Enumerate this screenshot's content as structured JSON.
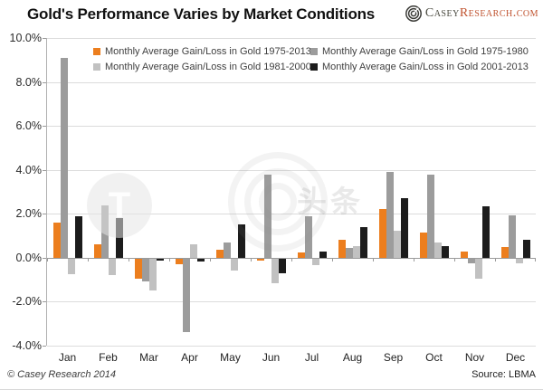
{
  "header": {
    "title": "Gold's Performance Varies by Market Conditions",
    "logo": {
      "brand_left": "Casey",
      "brand_right": "Research.com"
    }
  },
  "chart_data": {
    "type": "bar",
    "title": "Gold's Performance Varies by Market Conditions",
    "categories": [
      "Jan",
      "Feb",
      "Mar",
      "Apr",
      "May",
      "Jun",
      "Jul",
      "Aug",
      "Sep",
      "Oct",
      "Nov",
      "Dec"
    ],
    "series": [
      {
        "name": "Monthly Average Gain/Loss in Gold 1975-2013",
        "short": "1975-2013",
        "color": "#EC7E1E",
        "values": [
          1.6,
          0.6,
          -0.9,
          -0.25,
          0.35,
          -0.1,
          0.25,
          0.8,
          2.2,
          1.15,
          0.3,
          0.5
        ]
      },
      {
        "name": "Monthly Average Gain/Loss in Gold 1975-1980",
        "short": "1975-1980",
        "color": "#9C9C9C",
        "values": [
          9.1,
          2.4,
          -1.05,
          -3.35,
          0.7,
          3.8,
          1.9,
          0.45,
          3.9,
          3.8,
          -0.2,
          1.95
        ]
      },
      {
        "name": "Monthly Average Gain/Loss in Gold 1981-2000",
        "short": "1981-2000",
        "color": "#C1C1C1",
        "values": [
          -0.7,
          -0.75,
          -1.45,
          0.6,
          -0.55,
          -1.1,
          -0.3,
          0.55,
          1.25,
          0.7,
          -0.9,
          -0.2
        ]
      },
      {
        "name": "Monthly Average Gain/Loss in Gold 2001-2013",
        "short": "2001-2013",
        "color": "#1C1C1C",
        "values": [
          1.9,
          1.8,
          -0.1,
          -0.15,
          1.5,
          -0.65,
          0.3,
          1.4,
          2.7,
          0.55,
          2.35,
          0.8
        ]
      }
    ],
    "yticks": [
      {
        "label": "10.0%",
        "value": 10
      },
      {
        "label": "8.0%",
        "value": 8
      },
      {
        "label": "6.0%",
        "value": 6
      },
      {
        "label": "4.0%",
        "value": 4
      },
      {
        "label": "2.0%",
        "value": 2
      },
      {
        "label": "0.0%",
        "value": 0
      },
      {
        "label": "-2.0%",
        "value": -2
      },
      {
        "label": "-4.0%",
        "value": -4
      }
    ],
    "ylim": [
      -4,
      10
    ],
    "grid": true,
    "legend_position": "top-inside"
  },
  "watermark": {
    "t_glyph": "T",
    "text": "头条"
  },
  "footer": {
    "copyright": "© Casey Research 2014",
    "source": "Source: LBMA"
  }
}
